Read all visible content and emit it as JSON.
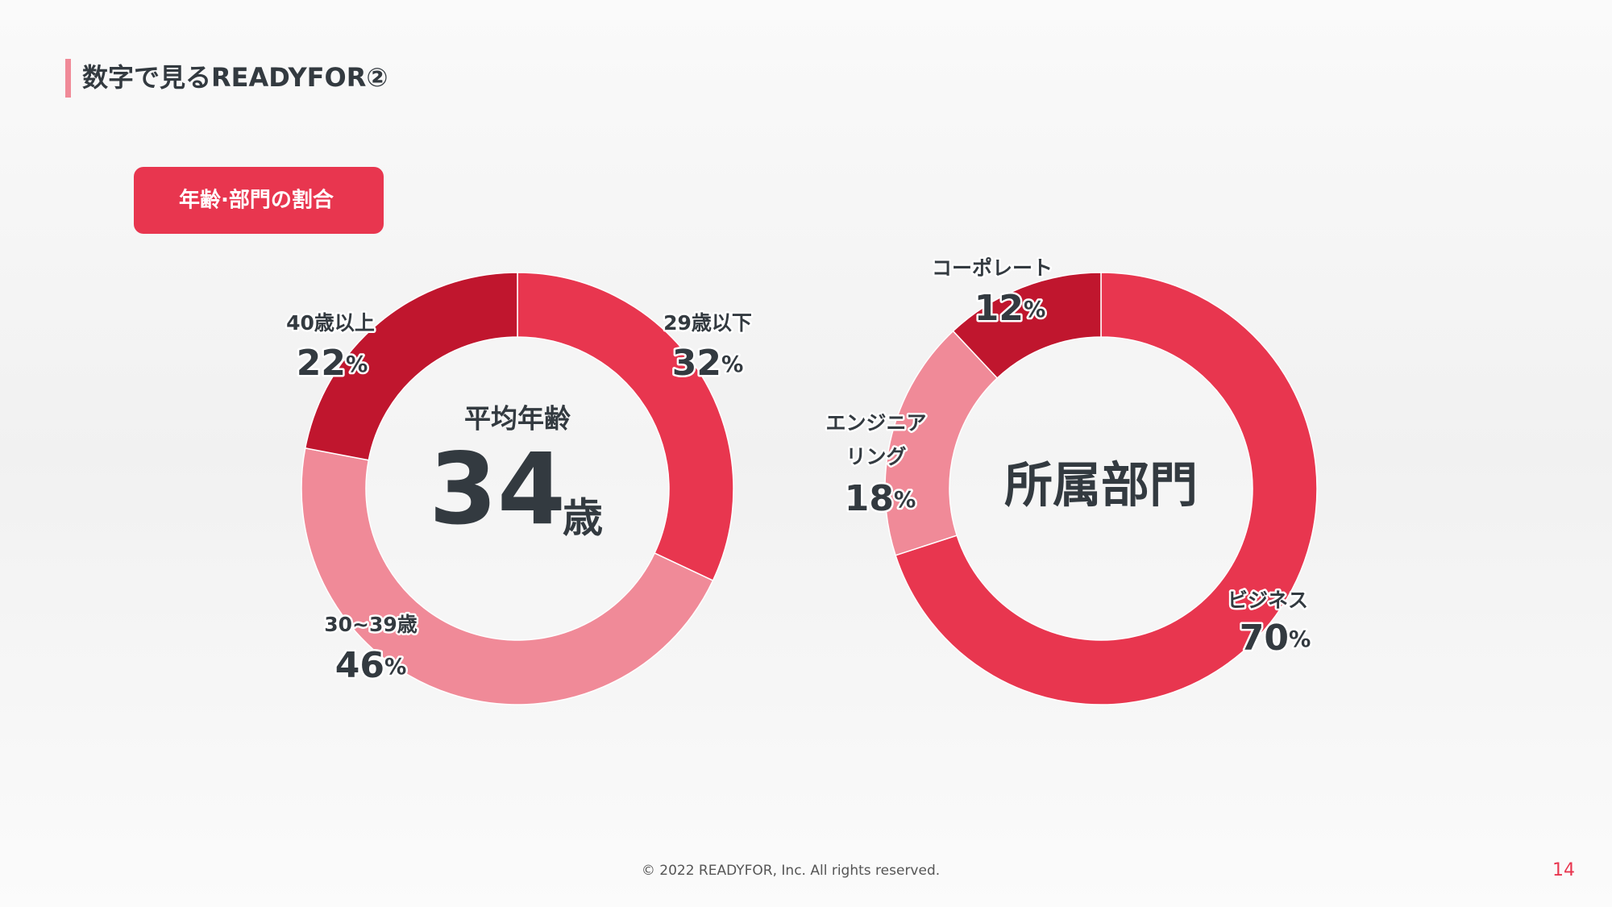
{
  "header": {
    "title": "数字で見るREADYFOR②",
    "badge": "年齢·部門の割合"
  },
  "footer": {
    "copyright": "© 2022 READYFOR, Inc. All rights reserved.",
    "page": "14"
  },
  "chart_data": [
    {
      "type": "donut",
      "categories": [
        "29歳以下",
        "30~39歳",
        "40歳以上"
      ],
      "values": [
        32,
        46,
        22
      ],
      "value_labels": [
        "32%",
        "46%",
        "22%"
      ],
      "colors": [
        "#e8364f",
        "#f08a98",
        "#c0162e"
      ],
      "center": {
        "label": "平均年齢",
        "value": 34,
        "unit": "歳"
      }
    },
    {
      "type": "donut",
      "categories": [
        "ビジネス",
        "エンジニアリング",
        "コーポレート"
      ],
      "values": [
        70,
        18,
        12
      ],
      "value_labels": [
        "70%",
        "18%",
        "12%"
      ],
      "colors": [
        "#e8364f",
        "#f08a98",
        "#c0162e"
      ],
      "center": {
        "label": "所属部門"
      }
    }
  ]
}
